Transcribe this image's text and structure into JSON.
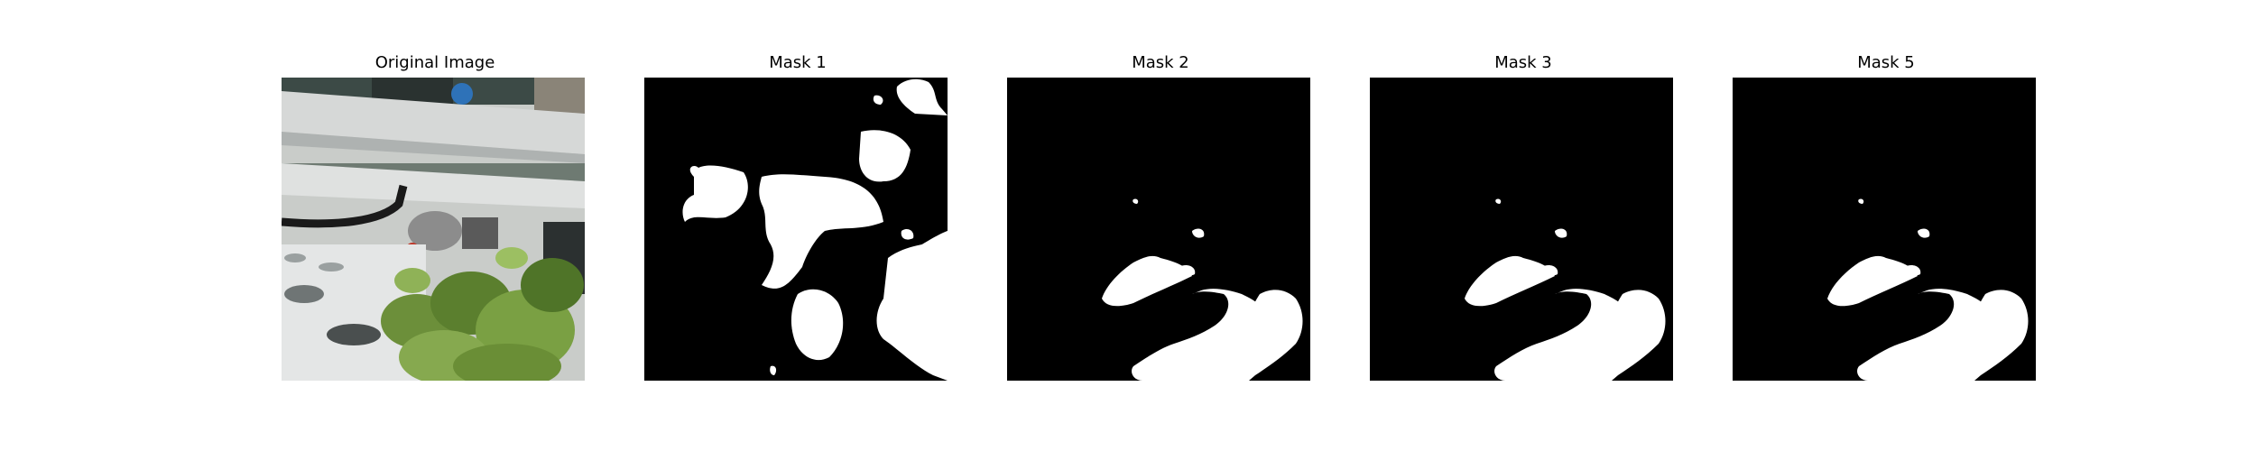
{
  "figure": {
    "panels": [
      {
        "title": "Original Image"
      },
      {
        "title": "Mask 1"
      },
      {
        "title": "Mask 2"
      },
      {
        "title": "Mask 3"
      },
      {
        "title": "Mask 5"
      }
    ]
  },
  "colors": {
    "background": "#ffffff",
    "mask_bg": "#000000",
    "mask_fg": "#ffffff"
  }
}
